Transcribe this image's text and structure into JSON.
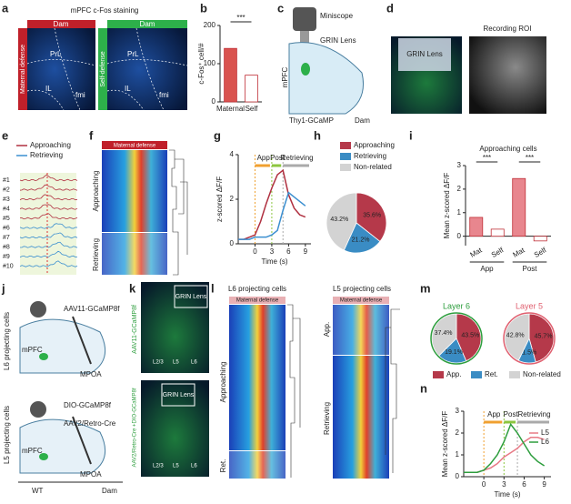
{
  "panel_letters": [
    "a",
    "b",
    "c",
    "d",
    "e",
    "f",
    "g",
    "h",
    "i",
    "j",
    "k",
    "l",
    "m",
    "n"
  ],
  "a": {
    "title": "mPFC c-Fos staining",
    "dam1": "Dam",
    "dam2": "Dam",
    "left": "Maternal defense",
    "right": "Self-defense",
    "prl1": "PrL",
    "il1": "IL",
    "fmi1": "fmi",
    "prl2": "PrL",
    "il2": "IL",
    "fmi2": "fmi"
  },
  "c": {
    "miniscope": "Miniscope",
    "grin": "GRIN Lens",
    "mpfc": "mPFC",
    "mouse": "Thy1-GCaMP",
    "dam": "Dam"
  },
  "d": {
    "grin": "GRIN Lens",
    "roi": "Recording ROI"
  },
  "e": {
    "cells": [
      "#1",
      "#2",
      "#3",
      "#4",
      "#5",
      "#6",
      "#7",
      "#8",
      "#9",
      "#10"
    ]
  },
  "f": {
    "banner": "Maternal defense",
    "approaching": "Approaching",
    "retrieving": "Retrieving"
  },
  "j": {
    "l6": "L6 projecting cells",
    "l5": "L5 projecting cells",
    "v1": "AAV11-GCaMP8f",
    "v2": "DIO-GCaMP8f",
    "v3": "AAV2/Retro-Cre",
    "mpfc1": "mPFC",
    "mpfc2": "mPFC",
    "mpoa1": "MPOA",
    "mpoa2": "MPOA",
    "wt": "WT",
    "dam": "Dam"
  },
  "k": {
    "grin1": "GRIN Lens",
    "grin2": "GRIN Lens",
    "v1": "AAV11-GCaMP8f",
    "v2": "AAV2/Retro-Cre +DIO-GCaMP8f",
    "l23a": "L2/3",
    "l5a": "L5",
    "l6a": "L6",
    "l23b": "L2/3",
    "l5b": "L5",
    "l6b": "L6"
  },
  "l": {
    "t1": "L6 projecting cells",
    "t2": "L5 projecting cells",
    "banner1": "Maternal defense",
    "banner2": "Maternal defense",
    "app": "Approaching",
    "ret": "Ret.",
    "app2": "App.",
    "ret2": "Retrieving"
  },
  "chart_data": [
    {
      "type": "bar",
      "categories": [
        "Maternal",
        "Self"
      ],
      "values": [
        140,
        70
      ],
      "colors": [
        "#d9534f",
        "#ffffff"
      ],
      "ylabel": "c-Fos⁺ cell/#",
      "ylim": [
        0,
        200
      ],
      "yticks": [
        0,
        100,
        200
      ],
      "annotations": [
        "***"
      ]
    },
    {
      "type": "line",
      "x": [
        -3,
        -2,
        -1,
        0,
        1,
        2,
        3,
        4,
        5,
        6,
        7,
        8,
        9
      ],
      "series": [
        {
          "name": "Approaching",
          "color": "#b03040",
          "values": [
            0.2,
            0.2,
            0.3,
            0.4,
            1.0,
            1.8,
            2.5,
            3.1,
            3.3,
            2.2,
            1.6,
            1.3,
            1.2
          ]
        },
        {
          "name": "Retrieving",
          "color": "#3b8fd0",
          "values": [
            0.2,
            0.2,
            0.2,
            0.3,
            0.3,
            0.3,
            0.4,
            0.6,
            1.5,
            2.3,
            2.1,
            1.9,
            1.7
          ]
        }
      ],
      "xlabel": "Time (s)",
      "ylabel": "z-scored ΔF/F",
      "xlim": [
        -3,
        10
      ],
      "xticks": [
        0,
        3,
        6,
        9
      ],
      "ylim": [
        0,
        4
      ],
      "yticks": [
        0,
        2,
        4
      ],
      "annotations": [
        "App",
        "Post",
        "Retrieving"
      ],
      "vlines": [
        0,
        3,
        5
      ]
    },
    {
      "type": "pie",
      "categories": [
        "Approaching",
        "Retrieving",
        "Non-related"
      ],
      "values": [
        35.6,
        21.2,
        43.2
      ],
      "value_labels": [
        "35.6%",
        "21.2%",
        "43.2%"
      ],
      "colors": [
        "#b5394a",
        "#3a8cc4",
        "#d3d3d3"
      ]
    },
    {
      "type": "bar",
      "title": "Approaching cells",
      "categories": [
        "Mat",
        "Self",
        "Mat",
        "Self"
      ],
      "groups": [
        "App",
        "Post"
      ],
      "values": [
        0.8,
        0.3,
        2.45,
        -0.2
      ],
      "colors": [
        "#e8868e",
        "#ffffff",
        "#e8868e",
        "#ffffff"
      ],
      "ylabel": "Mean z-scored ΔF/F",
      "ylim": [
        -0.4,
        3
      ],
      "yticks": [
        0,
        1,
        2,
        3
      ],
      "annotations": [
        "***",
        "***"
      ]
    },
    {
      "type": "pie",
      "title": "Layer 6",
      "title_color": "#2e9e3e",
      "categories": [
        "App.",
        "Ret.",
        "Non-related"
      ],
      "values": [
        43.5,
        19.1,
        37.4
      ],
      "value_labels": [
        "43.5%",
        "19.1%",
        "37.4%"
      ],
      "colors": [
        "#b5394a",
        "#3a8cc4",
        "#d3d3d3"
      ],
      "outline": "#2e9e3e"
    },
    {
      "type": "pie",
      "title": "Layer 5",
      "title_color": "#e06070",
      "values": [
        45.7,
        11.5,
        42.8
      ],
      "value_labels": [
        "45.7%",
        "11.5%",
        "42.8%"
      ],
      "colors": [
        "#b5394a",
        "#3a8cc4",
        "#d3d3d3"
      ],
      "outline": "#e06070"
    },
    {
      "type": "line",
      "x": [
        -3,
        -2,
        -1,
        0,
        1,
        2,
        3,
        4,
        5,
        6,
        7,
        8,
        9
      ],
      "series": [
        {
          "name": "L5",
          "color": "#e87a86",
          "values": [
            0.2,
            0.2,
            0.2,
            0.3,
            0.4,
            0.6,
            0.9,
            1.1,
            1.3,
            1.6,
            1.8,
            1.8,
            1.7
          ]
        },
        {
          "name": "L6",
          "color": "#2e9e3e",
          "values": [
            0.2,
            0.2,
            0.2,
            0.3,
            0.6,
            1.0,
            1.6,
            2.4,
            2.0,
            1.5,
            1.0,
            0.7,
            0.5
          ]
        }
      ],
      "xlabel": "Time (s)",
      "ylabel": "Mean z-scored ΔF/F",
      "xlim": [
        -3,
        10
      ],
      "xticks": [
        0,
        3,
        6,
        9
      ],
      "ylim": [
        0,
        3
      ],
      "yticks": [
        0,
        1,
        2,
        3
      ],
      "annotations": [
        "App",
        "Post",
        "Retrieving"
      ],
      "vlines": [
        0,
        3,
        5
      ]
    }
  ]
}
